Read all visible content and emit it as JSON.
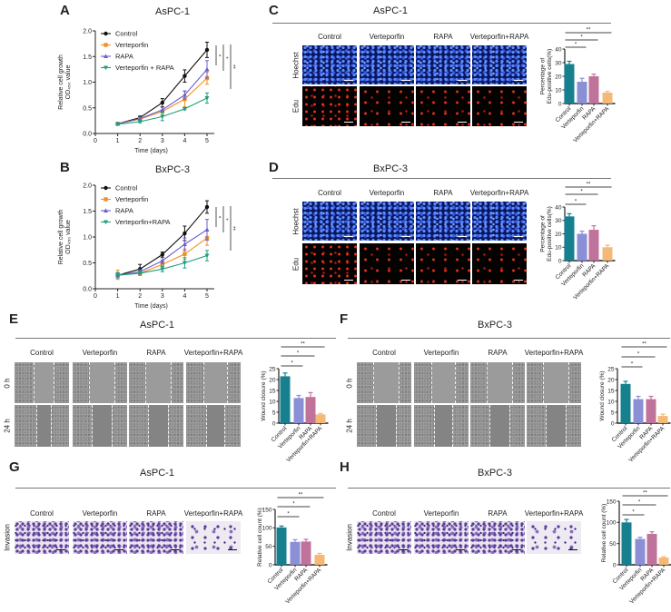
{
  "panels": {
    "A": {
      "label": "A"
    },
    "B": {
      "label": "B"
    },
    "C": {
      "label": "C",
      "title": "AsPC-1",
      "columns": [
        "Control",
        "Verteporfin",
        "RAPA",
        "Verteporfin+RAPA"
      ],
      "rows": [
        "Hoechst",
        "Edu"
      ]
    },
    "D": {
      "label": "D",
      "title": "BxPC-3",
      "columns": [
        "Control",
        "Verteporfin",
        "RAPA",
        "Verteporfin+RAPA"
      ],
      "rows": [
        "Hoechst",
        "Edu"
      ]
    },
    "E": {
      "label": "E",
      "title": "AsPC-1",
      "columns": [
        "Control",
        "Verteporfin",
        "RAPA",
        "Verteporfin+RAPA"
      ],
      "rows": [
        "0 h",
        "24 h"
      ]
    },
    "F": {
      "label": "F",
      "title": "BxPC-3",
      "columns": [
        "Control",
        "Verteporfin",
        "RAPA",
        "Verteporfin+RAPA"
      ],
      "rows": [
        "0 h",
        "24 h"
      ]
    },
    "G": {
      "label": "G",
      "title": "AsPC-1",
      "columns": [
        "Control",
        "Verteporfin",
        "RAPA",
        "Verteporfin+RAPA"
      ],
      "rows": [
        "Invasion"
      ]
    },
    "H": {
      "label": "H",
      "title": "BxPC-3",
      "columns": [
        "Control",
        "Verteporfin",
        "RAPA",
        "Verteporfin+RAPA"
      ],
      "rows": [
        "Invasion"
      ]
    }
  },
  "chart_data": [
    {
      "type": "line",
      "panel": "A",
      "title": "AsPC-1",
      "xlabel": "Time (days)",
      "ylabel": [
        "Relative cell growth",
        "OD₄₅₀ value"
      ],
      "xlim": [
        0,
        5
      ],
      "ylim": [
        0,
        2
      ],
      "xticks": [
        "0",
        "1",
        "2",
        "3",
        "4",
        "5"
      ],
      "yticks": [
        "0.0",
        "0.5",
        "1.0",
        "1.5",
        "2.0"
      ],
      "legend": "top-left",
      "x": [
        1,
        2,
        3,
        4,
        5
      ],
      "series": [
        {
          "name": "Control",
          "color": "#111111",
          "marker": "circle",
          "values": [
            0.19,
            0.31,
            0.6,
            1.12,
            1.63
          ],
          "errors": [
            0.02,
            0.03,
            0.08,
            0.12,
            0.15
          ]
        },
        {
          "name": "Verteporfin",
          "color": "#f39021",
          "marker": "square",
          "values": [
            0.19,
            0.28,
            0.43,
            0.67,
            1.08
          ],
          "errors": [
            0.02,
            0.03,
            0.08,
            0.15,
            0.12
          ]
        },
        {
          "name": "RAPA",
          "color": "#6a5fd0",
          "marker": "triangle",
          "values": [
            0.19,
            0.29,
            0.46,
            0.75,
            1.25
          ],
          "errors": [
            0.02,
            0.03,
            0.05,
            0.08,
            0.17
          ]
        },
        {
          "name": "Verteporfin + RAPA",
          "color": "#1f9e7c",
          "marker": "triangle-down",
          "values": [
            0.18,
            0.23,
            0.33,
            0.48,
            0.69
          ],
          "errors": [
            0.02,
            0.02,
            0.08,
            0.02,
            0.1
          ]
        }
      ],
      "significance": [
        "*",
        "*",
        "**"
      ]
    },
    {
      "type": "line",
      "panel": "B",
      "title": "BxPC-3",
      "xlabel": "Time (days)",
      "ylabel": [
        "Relative cell growth",
        "OD₄₅₀ value"
      ],
      "xlim": [
        0,
        5
      ],
      "ylim": [
        0,
        2
      ],
      "xticks": [
        "0",
        "1",
        "2",
        "3",
        "4",
        "5"
      ],
      "yticks": [
        "0.0",
        "0.5",
        "1.0",
        "1.5",
        "2.0"
      ],
      "legend": "top-left",
      "x": [
        1,
        2,
        3,
        4,
        5
      ],
      "series": [
        {
          "name": "Control",
          "color": "#111111",
          "marker": "circle",
          "values": [
            0.26,
            0.38,
            0.66,
            1.07,
            1.58
          ],
          "errors": [
            0.05,
            0.09,
            0.05,
            0.14,
            0.12
          ]
        },
        {
          "name": "Verteporfin",
          "color": "#f39021",
          "marker": "square",
          "values": [
            0.27,
            0.3,
            0.47,
            0.67,
            0.98
          ],
          "errors": [
            0.09,
            0.04,
            0.08,
            0.1,
            0.14
          ]
        },
        {
          "name": "RAPA",
          "color": "#6a5fd0",
          "marker": "triangle",
          "values": [
            0.26,
            0.33,
            0.54,
            0.86,
            1.14
          ],
          "errors": [
            0.05,
            0.04,
            0.06,
            0.12,
            0.2
          ]
        },
        {
          "name": "Verteporfin+RAPA",
          "color": "#1f9e7c",
          "marker": "triangle-down",
          "values": [
            0.26,
            0.3,
            0.38,
            0.5,
            0.64
          ],
          "errors": [
            0.05,
            0.04,
            0.05,
            0.1,
            0.1
          ]
        }
      ],
      "significance": [
        "*",
        "*",
        "**"
      ]
    },
    {
      "type": "bar",
      "panel": "C",
      "ylabel": [
        "Percentage of",
        "Edu-positive cells(%)"
      ],
      "ylim": [
        0,
        40
      ],
      "yticks": [
        "0",
        "10",
        "20",
        "30",
        "40"
      ],
      "categories": [
        "Control",
        "Verteporfin",
        "RAPA",
        "Verteporfin+RAPA"
      ],
      "values": [
        29,
        16,
        20,
        8
      ],
      "errors": [
        2,
        2.5,
        1.5,
        1
      ],
      "colors": [
        "#16808f",
        "#8b8fd6",
        "#c0739a",
        "#f4b877"
      ],
      "significance": [
        {
          "pair": [
            "Control",
            "Verteporfin"
          ],
          "label": "*"
        },
        {
          "pair": [
            "Control",
            "RAPA"
          ],
          "label": "*"
        },
        {
          "pair": [
            "Control",
            "Verteporfin+RAPA"
          ],
          "label": "**"
        }
      ]
    },
    {
      "type": "bar",
      "panel": "D",
      "ylabel": [
        "Percentage of",
        "Edu-positive cells(%)"
      ],
      "ylim": [
        0,
        40
      ],
      "yticks": [
        "0",
        "10",
        "20",
        "30",
        "40"
      ],
      "categories": [
        "Control",
        "Verteporfin",
        "RAPA",
        "Verteporfin+RAPA"
      ],
      "values": [
        33,
        20,
        23,
        10
      ],
      "errors": [
        2,
        2,
        3,
        1.5
      ],
      "colors": [
        "#16808f",
        "#8b8fd6",
        "#c0739a",
        "#f4b877"
      ],
      "significance": [
        {
          "pair": [
            "Control",
            "Verteporfin"
          ],
          "label": "*"
        },
        {
          "pair": [
            "Control",
            "RAPA"
          ],
          "label": "*"
        },
        {
          "pair": [
            "Control",
            "Verteporfin+RAPA"
          ],
          "label": "**"
        }
      ]
    },
    {
      "type": "bar",
      "panel": "E",
      "ylabel": [
        "Wound closure (%)"
      ],
      "ylim": [
        0,
        25
      ],
      "yticks": [
        "0",
        "5",
        "10",
        "15",
        "20",
        "25"
      ],
      "categories": [
        "Control",
        "Verteporfin",
        "RAPA",
        "Verteporfin+RAPA"
      ],
      "values": [
        21.5,
        11.5,
        12,
        4
      ],
      "errors": [
        1.5,
        1.2,
        2,
        0.4
      ],
      "colors": [
        "#16808f",
        "#8b8fd6",
        "#c0739a",
        "#f4b877"
      ],
      "significance": [
        {
          "pair": [
            "Control",
            "Verteporfin"
          ],
          "label": "*"
        },
        {
          "pair": [
            "Control",
            "RAPA"
          ],
          "label": "*"
        },
        {
          "pair": [
            "Control",
            "Verteporfin+RAPA"
          ],
          "label": "**"
        }
      ]
    },
    {
      "type": "bar",
      "panel": "F",
      "ylabel": [
        "Wound closure (%)"
      ],
      "ylim": [
        0,
        25
      ],
      "yticks": [
        "0",
        "5",
        "10",
        "15",
        "20",
        "25"
      ],
      "categories": [
        "Control",
        "Verteporfin",
        "RAPA",
        "Verteporfin+RAPA"
      ],
      "values": [
        18,
        11,
        11,
        3.3
      ],
      "errors": [
        1.2,
        1.3,
        1.3,
        0.8
      ],
      "colors": [
        "#16808f",
        "#8b8fd6",
        "#c0739a",
        "#f4b877"
      ],
      "significance": [
        {
          "pair": [
            "Control",
            "Verteporfin"
          ],
          "label": "*"
        },
        {
          "pair": [
            "Control",
            "RAPA"
          ],
          "label": "*"
        },
        {
          "pair": [
            "Control",
            "Verteporfin+RAPA"
          ],
          "label": "**"
        }
      ]
    },
    {
      "type": "bar",
      "panel": "G",
      "ylabel": [
        "Relative cell count (%)"
      ],
      "ylim": [
        0,
        150
      ],
      "yticks": [
        "0",
        "50",
        "100",
        "150"
      ],
      "categories": [
        "Control",
        "Verteporfin",
        "RAPA",
        "Verteporfin+RAPA"
      ],
      "values": [
        101,
        62,
        63,
        27
      ],
      "errors": [
        4,
        6,
        6,
        4
      ],
      "colors": [
        "#16808f",
        "#8b8fd6",
        "#c0739a",
        "#f4b877"
      ],
      "significance": [
        {
          "pair": [
            "Control",
            "Verteporfin"
          ],
          "label": "*"
        },
        {
          "pair": [
            "Control",
            "RAPA"
          ],
          "label": "*"
        },
        {
          "pair": [
            "Control",
            "Verteporfin+RAPA"
          ],
          "label": "**"
        }
      ]
    },
    {
      "type": "bar",
      "panel": "H",
      "ylabel": [
        "Relative cell count (%)"
      ],
      "ylim": [
        0,
        150
      ],
      "yticks": [
        "0",
        "50",
        "100",
        "150"
      ],
      "categories": [
        "Control",
        "Verteporfin",
        "RAPA",
        "Verteporfin+RAPA"
      ],
      "values": [
        100,
        61,
        73,
        17
      ],
      "errors": [
        7,
        4,
        5,
        2
      ],
      "colors": [
        "#16808f",
        "#8b8fd6",
        "#c0739a",
        "#f4b877"
      ],
      "significance": [
        {
          "pair": [
            "Control",
            "Verteporfin"
          ],
          "label": "*"
        },
        {
          "pair": [
            "Control",
            "RAPA"
          ],
          "label": "*"
        },
        {
          "pair": [
            "Control",
            "Verteporfin+RAPA"
          ],
          "label": "**"
        }
      ]
    }
  ]
}
